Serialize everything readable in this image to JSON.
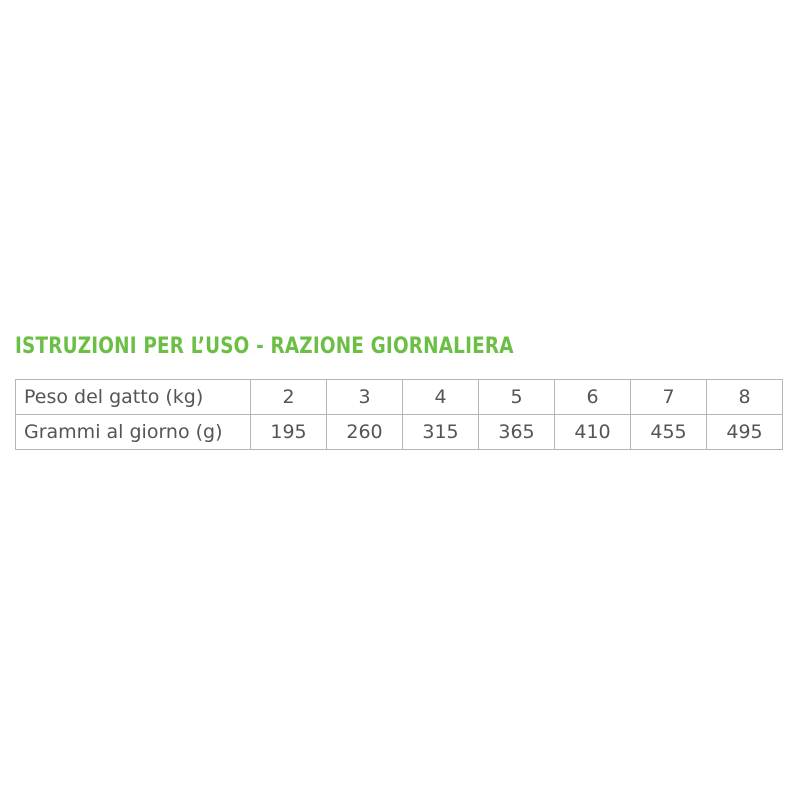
{
  "title": "ISTRUZIONI PER L’USO - RAZIONE GIORNALIERA",
  "colors": {
    "title": "#6cbf45",
    "border": "#b5b5b5",
    "text": "#555555"
  },
  "table": {
    "rows": [
      {
        "label": "Peso del gatto (kg)",
        "values": [
          "2",
          "3",
          "4",
          "5",
          "6",
          "7",
          "8"
        ]
      },
      {
        "label": "Grammi al giorno (g)",
        "values": [
          "195",
          "260",
          "315",
          "365",
          "410",
          "455",
          "495"
        ]
      }
    ]
  }
}
